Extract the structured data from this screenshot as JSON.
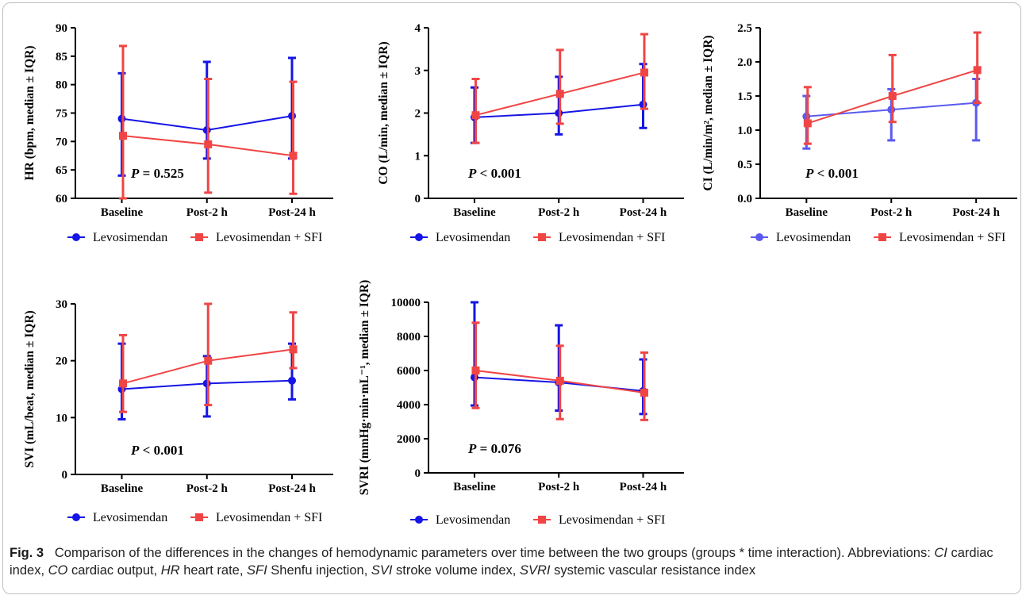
{
  "colors": {
    "levosimendan": "#1515e6",
    "levosimendan_sfi": "#f04545",
    "ci_levosimendan": "#5a5af0"
  },
  "caption": {
    "label": "Fig. 3",
    "text": "Comparison of the differences in the changes of hemodynamic parameters over time between the two groups (groups * time interaction). Abbreviations: ",
    "abbreviations": [
      {
        "abbr": "CI",
        "def": "cardiac index"
      },
      {
        "abbr": "CO",
        "def": "cardiac output"
      },
      {
        "abbr": "HR",
        "def": "heart rate"
      },
      {
        "abbr": "SFI",
        "def": "Shenfu injection"
      },
      {
        "abbr": "SVI",
        "def": "stroke volume index"
      },
      {
        "abbr": "SVRI",
        "def": "systemic vascular resistance index"
      }
    ]
  },
  "chart_data": [
    {
      "type": "line",
      "ylabel": "HR (bpm, median ± IQR)",
      "ylim": [
        60,
        90
      ],
      "yticks": [
        "60",
        "65",
        "70",
        "75",
        "80",
        "85",
        "90"
      ],
      "categories": [
        "Baseline",
        "Post-2 h",
        "Post-24 h"
      ],
      "p_label": "P",
      "p_text": " = 0.525",
      "series": [
        {
          "name": "Levosimendan",
          "values": [
            74,
            72,
            74.5
          ],
          "err_low": [
            64,
            67,
            67
          ],
          "err_high": [
            82,
            84,
            84.7
          ]
        },
        {
          "name": "Levosimendan + SFI",
          "values": [
            71,
            69.5,
            67.5
          ],
          "err_low": [
            60,
            61,
            60.8
          ],
          "err_high": [
            86.8,
            81,
            80.5
          ]
        }
      ]
    },
    {
      "type": "line",
      "ylabel": "CO (L/min, median ± IQR)",
      "ylim": [
        0,
        4
      ],
      "yticks": [
        "0",
        "1",
        "2",
        "3",
        "4"
      ],
      "categories": [
        "Baseline",
        "Post-2 h",
        "Post-24 h"
      ],
      "p_label": "P",
      "p_text": " < 0.001",
      "series": [
        {
          "name": "Levosimendan",
          "values": [
            1.9,
            2.0,
            2.2
          ],
          "err_low": [
            1.3,
            1.5,
            1.65
          ],
          "err_high": [
            2.6,
            2.85,
            3.15
          ]
        },
        {
          "name": "Levosimendan + SFI",
          "values": [
            1.95,
            2.45,
            2.95
          ],
          "err_low": [
            1.3,
            1.75,
            2.1
          ],
          "err_high": [
            2.8,
            3.48,
            3.85
          ]
        }
      ]
    },
    {
      "type": "line",
      "ylabel": "CI (L/min/m², median ± IQR)",
      "ylim": [
        0,
        2.5
      ],
      "yticks": [
        "0.0",
        "0.5",
        "1.0",
        "1.5",
        "2.0",
        "2.5"
      ],
      "categories": [
        "Baseline",
        "Post-2 h",
        "Post-24 h"
      ],
      "p_label": "P",
      "p_text": " < 0.001",
      "series": [
        {
          "name": "Levosimendan",
          "values": [
            1.2,
            1.3,
            1.4
          ],
          "err_low": [
            0.73,
            0.85,
            0.85
          ],
          "err_high": [
            1.5,
            1.6,
            1.75
          ]
        },
        {
          "name": "Levosimendan + SFI",
          "values": [
            1.1,
            1.5,
            1.88
          ],
          "err_low": [
            0.8,
            1.12,
            1.4
          ],
          "err_high": [
            1.63,
            2.1,
            2.43
          ]
        }
      ]
    },
    {
      "type": "line",
      "ylabel": "SVI (mL/beat, median ± IQR)",
      "ylim": [
        0,
        30
      ],
      "yticks": [
        "0",
        "10",
        "20",
        "30"
      ],
      "categories": [
        "Baseline",
        "Post-2 h",
        "Post-24 h"
      ],
      "p_label": "P",
      "p_text": " < 0.001",
      "series": [
        {
          "name": "Levosimendan",
          "values": [
            15,
            16,
            16.5
          ],
          "err_low": [
            9.7,
            10.2,
            13.2
          ],
          "err_high": [
            23,
            20.8,
            23
          ]
        },
        {
          "name": "Levosimendan + SFI",
          "values": [
            16,
            20,
            22
          ],
          "err_low": [
            11,
            12.2,
            18.7
          ],
          "err_high": [
            24.5,
            30,
            28.5
          ]
        }
      ]
    },
    {
      "type": "line",
      "ylabel": "SVRI (mmHg·min·mL⁻¹, median ± IQR)",
      "ylim": [
        0,
        10000
      ],
      "yticks": [
        "0",
        "2000",
        "4000",
        "6000",
        "8000",
        "10000"
      ],
      "categories": [
        "Baseline",
        "Post-2 h",
        "Post-24 h"
      ],
      "p_label": "P",
      "p_text": " = 0.076",
      "series": [
        {
          "name": "Levosimendan",
          "values": [
            5600,
            5300,
            4800
          ],
          "err_low": [
            3950,
            3650,
            3450
          ],
          "err_high": [
            10000,
            8650,
            6650
          ]
        },
        {
          "name": "Levosimendan + SFI",
          "values": [
            6000,
            5400,
            4700
          ],
          "err_low": [
            3800,
            3150,
            3100
          ],
          "err_high": [
            8800,
            7450,
            7050
          ]
        }
      ]
    }
  ]
}
